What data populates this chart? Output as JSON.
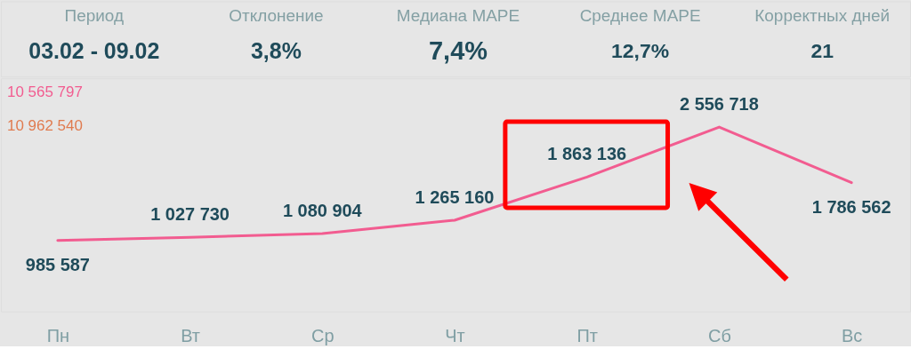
{
  "chart_data": [
    {
      "type": "other",
      "categories": [
        "Период",
        "Отклонение",
        "Медиана MAPE",
        "Среднее MAPE",
        "Корректных дней"
      ],
      "value_labels": [
        "03.02 - 09.02",
        "3,8%",
        "7,4%",
        "12,7%",
        "21"
      ]
    },
    {
      "type": "line",
      "categories": [
        "Пн",
        "Вт",
        "Ср",
        "Чт",
        "Пт",
        "Сб",
        "Вс"
      ],
      "series": [
        {
          "color": "#f25c90",
          "values": [
            985587,
            1027730,
            1080904,
            1265160,
            1863136,
            2556718,
            1786562
          ]
        }
      ],
      "data_labels": true,
      "annotations": [
        "10 565 797",
        "10 962 540"
      ],
      "tick_labels": "x"
    }
  ]
}
